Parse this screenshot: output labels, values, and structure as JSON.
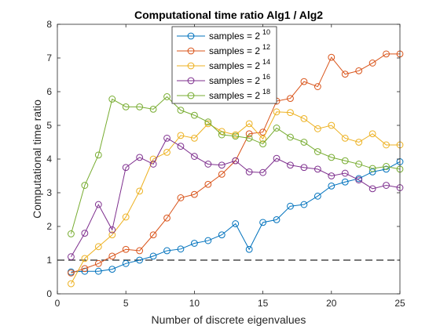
{
  "chart_data": {
    "type": "line",
    "title": "Computational time ratio Alg1 / Alg2",
    "xlabel": "Number of discrete eigenvalues",
    "ylabel": "Computational time ratio",
    "xlim": [
      0,
      25
    ],
    "ylim": [
      0,
      8
    ],
    "xticks": [
      "0",
      "5",
      "10",
      "15",
      "20",
      "25"
    ],
    "yticks": [
      "0",
      "1",
      "2",
      "3",
      "4",
      "5",
      "6",
      "7",
      "8"
    ],
    "grid": false,
    "legend_position": "top-center",
    "x": [
      1,
      2,
      3,
      4,
      5,
      6,
      7,
      8,
      9,
      10,
      11,
      12,
      13,
      14,
      15,
      16,
      17,
      18,
      19,
      20,
      21,
      22,
      23,
      24,
      25
    ],
    "reference_line": {
      "y": 1,
      "style": "dashed",
      "color": "#262626"
    },
    "series": [
      {
        "name": "samples = 2",
        "exponent": "10",
        "color": "#0072bd",
        "values": [
          0.65,
          0.67,
          0.67,
          0.73,
          0.9,
          1.0,
          1.12,
          1.28,
          1.33,
          1.5,
          1.58,
          1.75,
          2.08,
          1.32,
          2.12,
          2.2,
          2.6,
          2.65,
          2.9,
          3.2,
          3.32,
          3.42,
          3.62,
          3.7,
          3.92
        ]
      },
      {
        "name": "samples = 2",
        "exponent": "12",
        "color": "#d95319",
        "values": [
          0.62,
          0.75,
          0.9,
          1.12,
          1.32,
          1.28,
          1.75,
          2.25,
          2.85,
          2.95,
          3.25,
          3.55,
          3.95,
          4.75,
          4.8,
          5.72,
          5.8,
          6.3,
          6.15,
          7.02,
          6.52,
          6.62,
          6.85,
          7.12,
          7.12
        ]
      },
      {
        "name": "samples = 2",
        "exponent": "14",
        "color": "#edb120",
        "values": [
          0.3,
          1.05,
          1.4,
          1.75,
          2.28,
          3.05,
          4.0,
          4.2,
          4.7,
          4.62,
          5.05,
          4.82,
          4.72,
          5.05,
          4.6,
          5.4,
          5.38,
          5.2,
          4.9,
          5.0,
          4.62,
          4.5,
          4.75,
          4.42,
          4.42
        ]
      },
      {
        "name": "samples = 2",
        "exponent": "16",
        "color": "#7e2f8e",
        "values": [
          1.1,
          1.8,
          2.65,
          1.9,
          3.75,
          4.05,
          3.85,
          4.62,
          4.38,
          4.08,
          3.85,
          3.82,
          3.95,
          3.62,
          3.6,
          4.02,
          3.82,
          3.75,
          3.7,
          3.5,
          3.58,
          3.38,
          3.12,
          3.22,
          3.15
        ]
      },
      {
        "name": "samples = 2",
        "exponent": "18",
        "color": "#77ac30",
        "values": [
          1.78,
          3.22,
          4.12,
          5.78,
          5.55,
          5.55,
          5.48,
          5.85,
          5.45,
          5.3,
          5.1,
          4.72,
          4.68,
          4.62,
          4.45,
          4.92,
          4.65,
          4.5,
          4.22,
          4.05,
          3.95,
          3.85,
          3.72,
          3.78,
          3.7
        ]
      }
    ]
  }
}
